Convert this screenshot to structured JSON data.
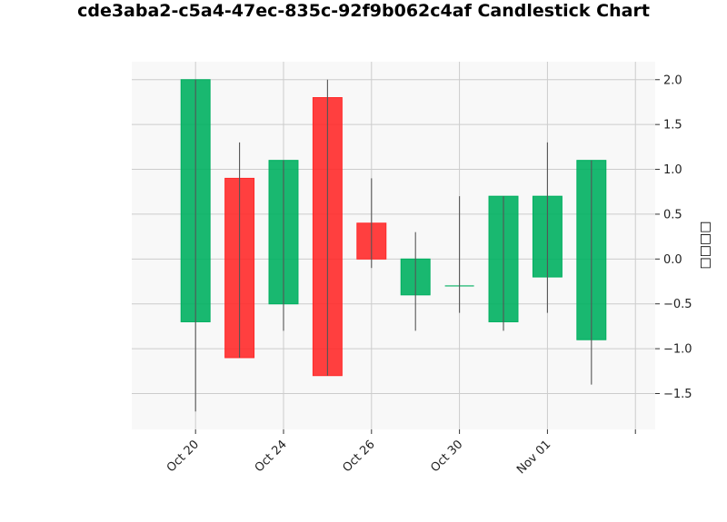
{
  "chart_data": {
    "type": "candlestick",
    "title": "cde3aba2-c5a4-47ec-835c-92f9b062c4af Candlestick Chart",
    "ylabel": "□□□□",
    "xlabel": "",
    "ylim": [
      -1.9,
      2.2
    ],
    "y_ticks": [
      -1.5,
      -1.0,
      -0.5,
      0.0,
      0.5,
      1.0,
      1.5,
      2.0
    ],
    "y_tick_labels": [
      "−1.5",
      "−1.0",
      "−0.5",
      "0.0",
      "0.5",
      "1.0",
      "1.5",
      "2.0"
    ],
    "x_ticks": [
      {
        "pos": 0,
        "label": "Oct 20"
      },
      {
        "pos": 2,
        "label": "Oct 24"
      },
      {
        "pos": 4,
        "label": "Oct 26"
      },
      {
        "pos": 6,
        "label": "Oct 30"
      },
      {
        "pos": 8,
        "label": "Nov 01"
      },
      {
        "pos": 10,
        "label": ""
      }
    ],
    "grid": true,
    "up_color": "#00b060",
    "down_color": "#ff2a2a",
    "wick_color": "#555555",
    "candles": [
      {
        "x": 0,
        "open": -0.7,
        "close": 2.0,
        "high": 2.0,
        "low": -1.7
      },
      {
        "x": 1,
        "open": 0.9,
        "close": -1.1,
        "high": 1.3,
        "low": -1.1
      },
      {
        "x": 2,
        "open": -0.5,
        "close": 1.1,
        "high": 1.1,
        "low": -0.8
      },
      {
        "x": 3,
        "open": 1.8,
        "close": -1.3,
        "high": 2.0,
        "low": -1.3
      },
      {
        "x": 4,
        "open": 0.4,
        "close": 0.0,
        "high": 0.9,
        "low": -0.1
      },
      {
        "x": 5,
        "open": -0.4,
        "close": 0.0,
        "high": 0.3,
        "low": -0.8
      },
      {
        "x": 6,
        "open": -0.3,
        "close": -0.3,
        "high": 0.7,
        "low": -0.6
      },
      {
        "x": 7,
        "open": -0.7,
        "close": 0.7,
        "high": 0.7,
        "low": -0.8
      },
      {
        "x": 8,
        "open": -0.2,
        "close": 0.7,
        "high": 1.3,
        "low": -0.6
      },
      {
        "x": 9,
        "open": -0.9,
        "close": 1.1,
        "high": 1.1,
        "low": -1.4
      }
    ]
  }
}
